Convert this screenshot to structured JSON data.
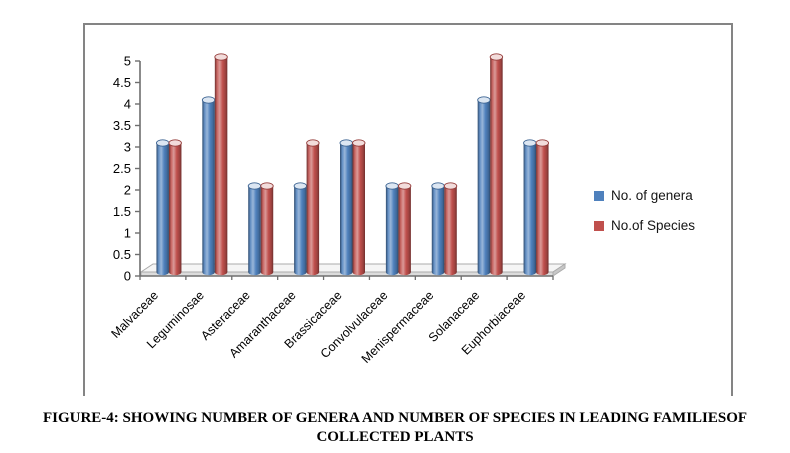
{
  "figure": {
    "caption": "FIGURE-4: SHOWING NUMBER OF GENERA AND NUMBER OF SPECIES IN LEADING FAMILIESOF COLLECTED PLANTS"
  },
  "chart_data": {
    "type": "bar",
    "style": "3d-cylinder",
    "title": "",
    "xlabel": "",
    "ylabel": "",
    "categories": [
      "Malvaceae",
      "Leguminosae",
      "Asteraceae",
      "Amaranthaceae",
      "Brassicaceae",
      "Convolvulaceae",
      "Menispermaceae",
      "Solanaceae",
      "Euphorbiaceae"
    ],
    "series": [
      {
        "name": "No. of genera",
        "color": "#4F81BD",
        "values": [
          3,
          4,
          2,
          2,
          3,
          2,
          2,
          4,
          3
        ]
      },
      {
        "name": "No.of Species",
        "color": "#C0504D",
        "values": [
          3,
          5,
          2,
          3,
          3,
          2,
          2,
          5,
          3
        ]
      }
    ],
    "ylim": [
      0,
      5
    ],
    "ytick_step": 0.5,
    "ytick_labels": [
      "0",
      "0.5",
      "1",
      "1.5",
      "2",
      "2.5",
      "3",
      "3.5",
      "4",
      "4.5",
      "5"
    ],
    "grid": false,
    "legend_position": "right-middle",
    "axis_color": "#6E6E6E",
    "frame_color": "#848484"
  }
}
